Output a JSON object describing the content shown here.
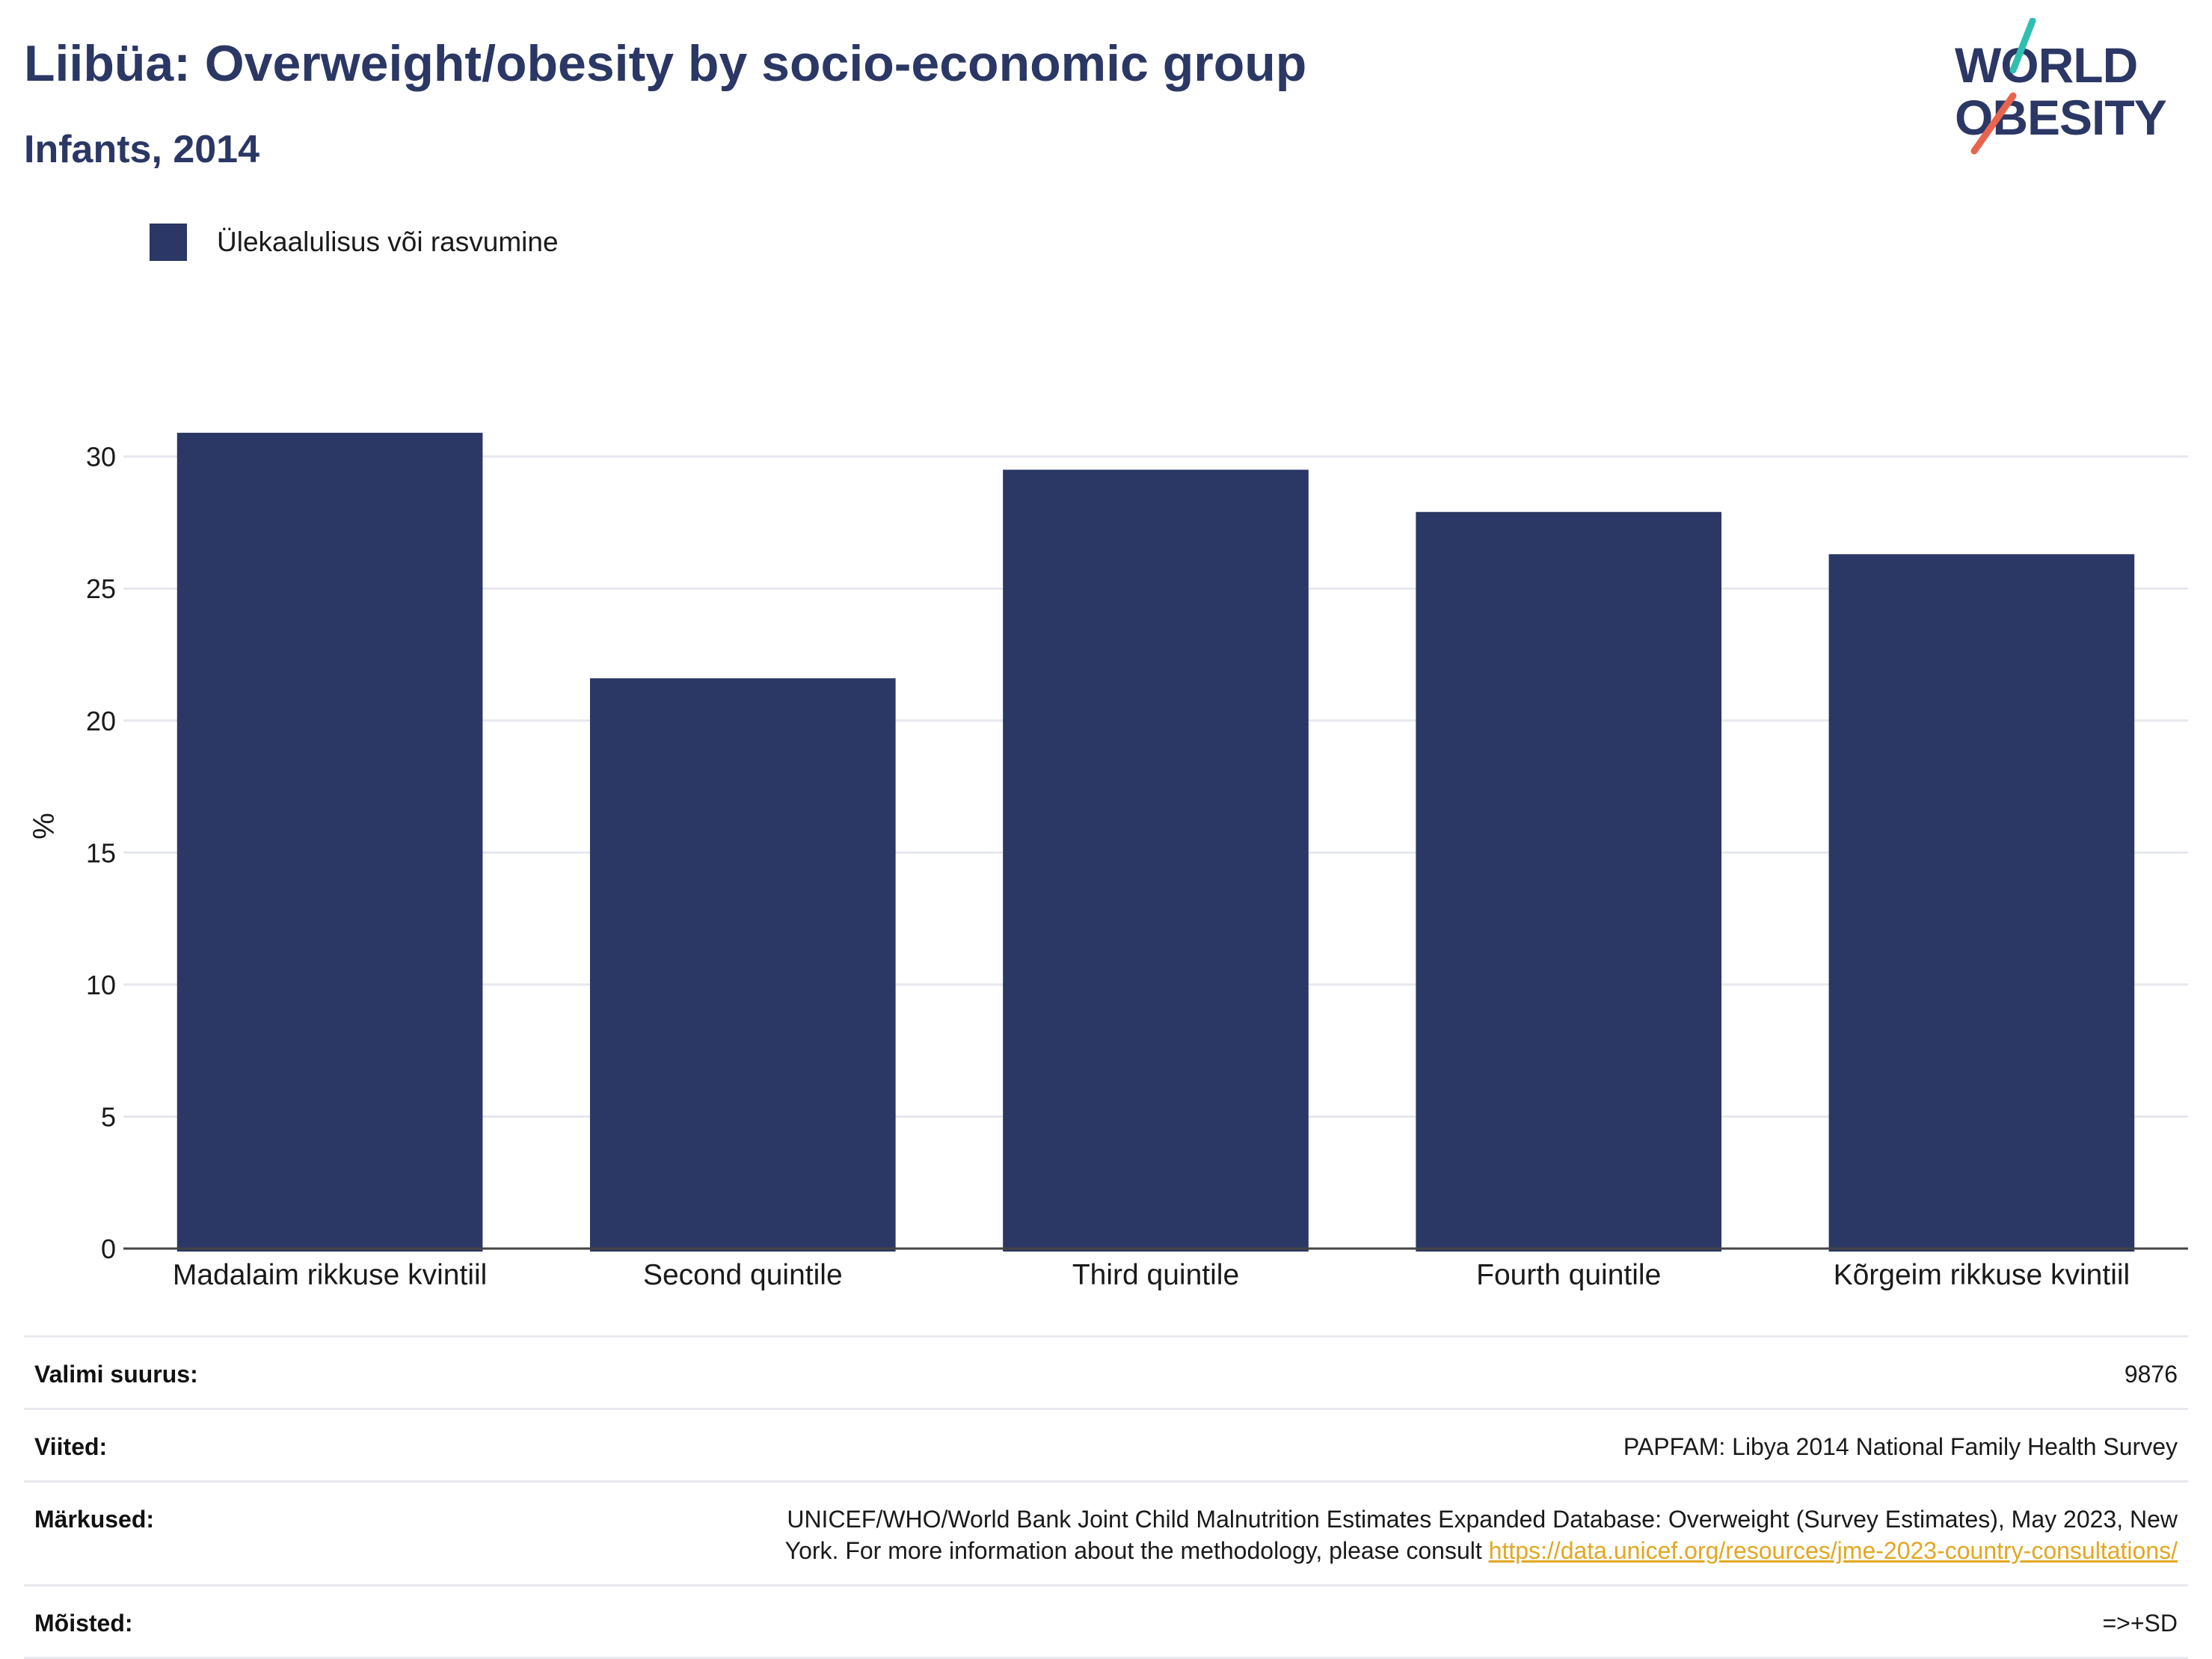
{
  "header": {
    "title": "Liibüa: Overweight/obesity by socio-economic group",
    "subtitle": "Infants, 2014"
  },
  "logo": {
    "line1": "WORLD",
    "line2": "OBESITY",
    "accent_colors": [
      "#2fbfb0",
      "#e9644f"
    ],
    "text_color": "#2b3764"
  },
  "legend": {
    "label": "Ülekaalulisus või rasvumine",
    "color": "#2b3764"
  },
  "chart_data": {
    "type": "bar",
    "categories": [
      "Madalaim rikkuse kvintiil",
      "Second quintile",
      "Third quintile",
      "Fourth quintile",
      "Kõrgeim rikkuse kvintiil"
    ],
    "series": [
      {
        "name": "Ülekaalulisus või rasvumine",
        "values": [
          30.9,
          21.6,
          29.5,
          27.9,
          26.3
        ],
        "color": "#2b3764"
      }
    ],
    "ylabel": "%",
    "ylim": [
      0,
      32
    ],
    "yticks": [
      0,
      5,
      10,
      15,
      20,
      25,
      30
    ],
    "grid": true,
    "legend_position": "top-left"
  },
  "info": {
    "sample_label": "Valimi suurus:",
    "sample_value": "9876",
    "refs_label": "Viited:",
    "refs_value": "PAPFAM: Libya 2014 National Family Health Survey",
    "notes_label": "Märkused:",
    "notes_line1": "UNICEF/WHO/World Bank Joint Child Malnutrition Estimates Expanded Database: Overweight (Survey Estimates), May 2023, New",
    "notes_line2": "York. For more information about the methodology, please consult ",
    "notes_link": "https://data.unicef.org/resources/jme-2023-country-consultations/",
    "defs_label": "Mõisted:",
    "defs_value": "=>+SD"
  }
}
